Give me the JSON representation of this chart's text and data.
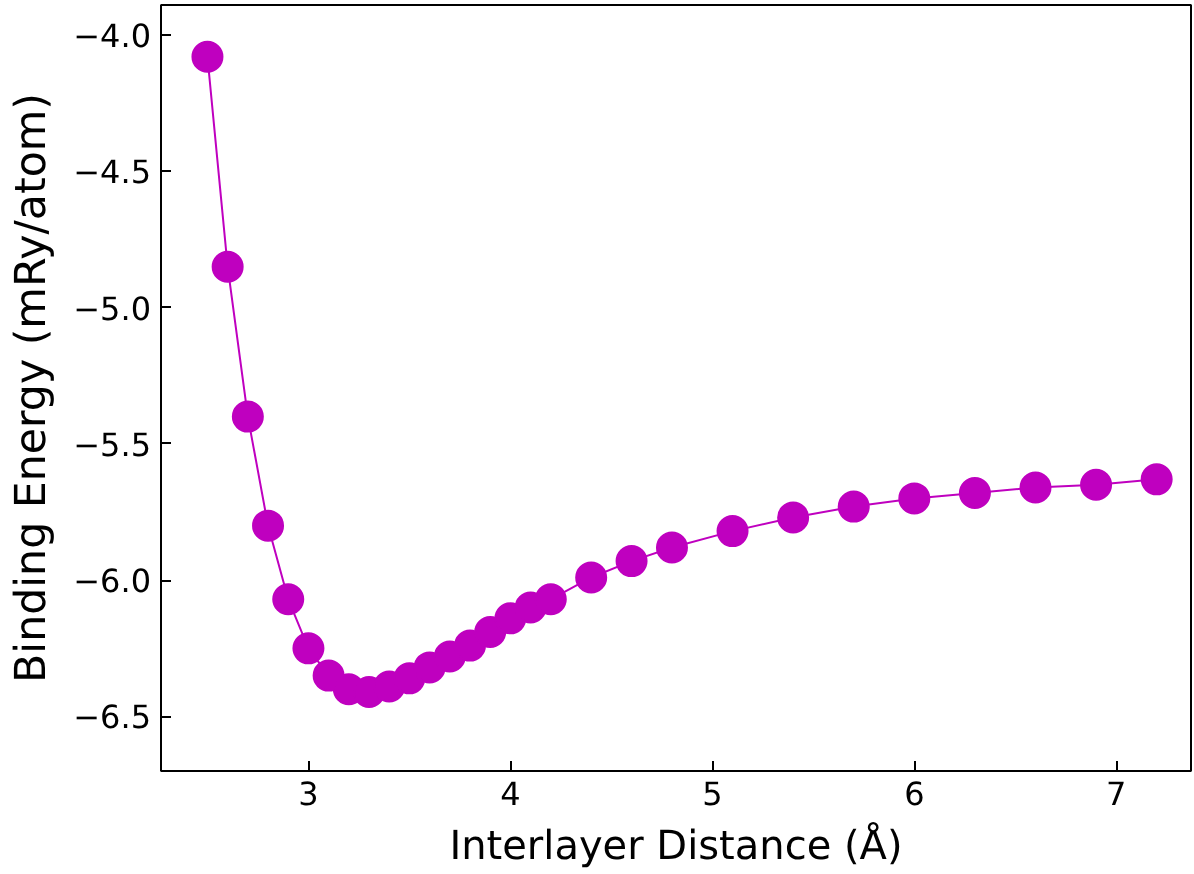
{
  "chart_data": {
    "type": "line",
    "xlabel": "Interlayer Distance (Å)",
    "ylabel": "Binding Energy (mRy/atom)",
    "x": [
      2.5,
      2.6,
      2.7,
      2.8,
      2.9,
      3.0,
      3.1,
      3.2,
      3.3,
      3.4,
      3.5,
      3.6,
      3.7,
      3.8,
      3.9,
      4.0,
      4.1,
      4.2,
      4.4,
      4.6,
      4.8,
      5.1,
      5.4,
      5.7,
      6.0,
      6.3,
      6.6,
      6.9,
      7.2
    ],
    "series": [
      {
        "color": "#bf00bf",
        "values": [
          -4.08,
          -4.85,
          -5.4,
          -5.8,
          -6.07,
          -6.25,
          -6.35,
          -6.4,
          -6.41,
          -6.39,
          -6.36,
          -6.32,
          -6.28,
          -6.24,
          -6.19,
          -6.14,
          -6.1,
          -6.07,
          -5.99,
          -5.93,
          -5.88,
          -5.82,
          -5.77,
          -5.73,
          -5.7,
          -5.68,
          -5.66,
          -5.65,
          -5.63
        ]
      }
    ],
    "xlim": [
      2.27,
      7.37
    ],
    "ylim": [
      -6.7,
      -3.89
    ],
    "xticks": [
      3,
      4,
      5,
      6,
      7
    ],
    "yticks": [
      {
        "value": -6.5,
        "label": "−6.5"
      },
      {
        "value": -6.0,
        "label": "−6.0"
      },
      {
        "value": -5.5,
        "label": "−5.5"
      },
      {
        "value": -5.0,
        "label": "−5.0"
      },
      {
        "value": -4.5,
        "label": "−4.5"
      },
      {
        "value": -4.0,
        "label": "−4.0"
      }
    ],
    "marker": "circle",
    "line_style": "solid"
  }
}
